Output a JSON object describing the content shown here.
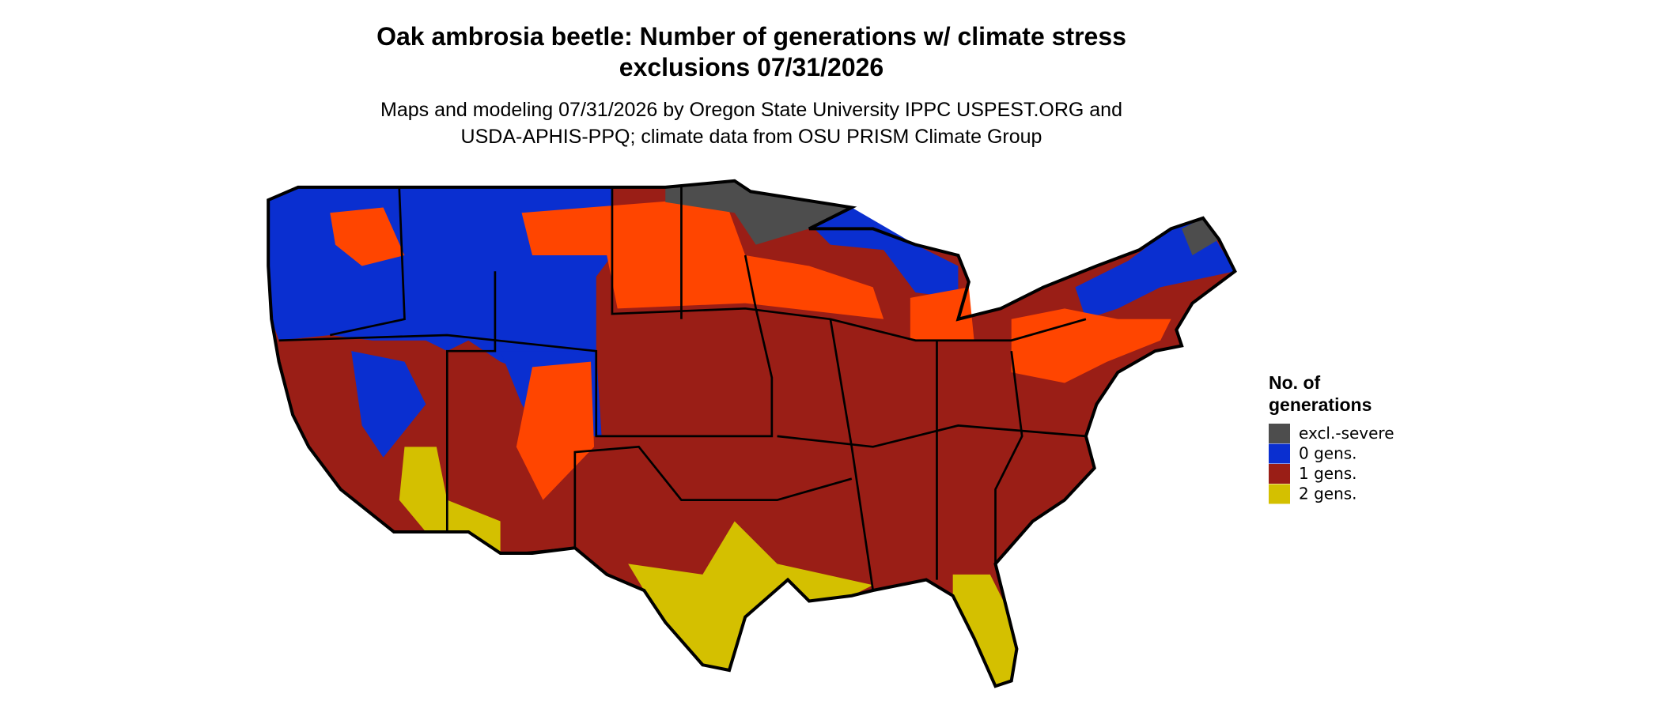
{
  "header": {
    "title_lines": [
      "Oak ambrosia beetle: Number of generations w/ climate stress",
      "exclusions 07/31/2026"
    ],
    "subtitle_lines": [
      "Maps and modeling 07/31/2026 by Oregon State University IPPC USPEST.ORG and",
      "USDA-APHIS-PPQ; climate data from OSU PRISM Climate Group"
    ]
  },
  "legend": {
    "title_lines": [
      "No. of",
      "generations"
    ],
    "entries": [
      {
        "label": "excl.-severe",
        "color": "#4d4d4d"
      },
      {
        "label": "0 gens.",
        "color": "#0a2fd0"
      },
      {
        "label": "1 gens.",
        "color": "#9a1e16"
      },
      {
        "label": "2 gens.",
        "color": "#d4c000"
      }
    ]
  }
}
